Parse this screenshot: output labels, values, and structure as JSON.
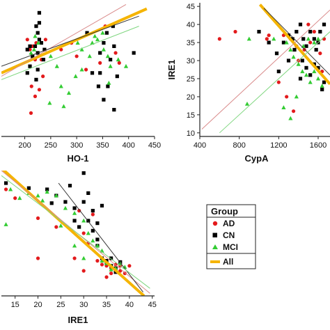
{
  "chart_data": [
    {
      "type": "scatter",
      "xlabel": "HO-1",
      "ylabel": "",
      "xlim": [
        155,
        450
      ],
      "ylim": [
        7,
        47
      ],
      "xticks": [
        "200",
        "250",
        "300",
        "350",
        "400",
        "450"
      ],
      "yticks": [],
      "series": [
        {
          "group": "AD",
          "color": "#e31a1c",
          "marker": "circle",
          "points": [
            [
              213,
              22
            ],
            [
              220,
              19
            ],
            [
              228,
              21
            ],
            [
              215,
              34
            ],
            [
              222,
              35
            ],
            [
              210,
              33
            ],
            [
              232,
              30
            ],
            [
              240,
              36
            ],
            [
              290,
              35
            ],
            [
              300,
              31
            ],
            [
              318,
              27
            ],
            [
              345,
              29
            ],
            [
              355,
              40
            ],
            [
              375,
              32
            ],
            [
              382,
              29
            ],
            [
              220,
              30
            ],
            [
              205,
              36
            ],
            [
              235,
              25
            ],
            [
              212,
              14
            ],
            [
              270,
              33
            ]
          ]
        },
        {
          "group": "CN",
          "color": "#000000",
          "marker": "square",
          "points": [
            [
              220,
              34
            ],
            [
              225,
              32
            ],
            [
              210,
              34
            ],
            [
              228,
              36
            ],
            [
              215,
              31
            ],
            [
              232,
              35
            ],
            [
              205,
              33
            ],
            [
              225,
              38
            ],
            [
              222,
              40
            ],
            [
              228,
              44
            ],
            [
              210,
              28
            ],
            [
              238,
              33
            ],
            [
              225,
              27
            ],
            [
              222,
              24
            ],
            [
              345,
              32
            ],
            [
              352,
              35
            ],
            [
              358,
              38
            ],
            [
              370,
              40
            ],
            [
              365,
              30
            ],
            [
              345,
              26
            ],
            [
              360,
              22
            ],
            [
              372,
              15
            ],
            [
              378,
              25
            ],
            [
              330,
              26
            ],
            [
              320,
              38
            ],
            [
              410,
              32
            ],
            [
              372,
              34
            ],
            [
              205,
              26
            ],
            [
              228,
              41
            ],
            [
              236,
              30
            ],
            [
              352,
              18
            ],
            [
              342,
              22
            ]
          ]
        },
        {
          "group": "MCI",
          "color": "#33cc33",
          "marker": "triangle",
          "points": [
            [
              218,
              33
            ],
            [
              226,
              35
            ],
            [
              220,
              37
            ],
            [
              212,
              32
            ],
            [
              302,
              35
            ],
            [
              310,
              33
            ],
            [
              325,
              31
            ],
            [
              310,
              27
            ],
            [
              298,
              25
            ],
            [
              270,
              22
            ],
            [
              262,
              28
            ],
            [
              250,
              31
            ],
            [
              285,
              20
            ],
            [
              340,
              36
            ],
            [
              352,
              33
            ],
            [
              360,
              31
            ],
            [
              365,
              28
            ],
            [
              335,
              37
            ],
            [
              350,
              38
            ],
            [
              330,
              35
            ],
            [
              380,
              30
            ],
            [
              395,
              28
            ],
            [
              362,
              23
            ],
            [
              248,
              17
            ],
            [
              275,
              16
            ]
          ]
        }
      ],
      "fits": [
        {
          "group": "All",
          "color": "#f5b400",
          "from": [
            155,
            26.0
          ],
          "to": [
            435,
            45.2
          ]
        },
        {
          "group": "AD",
          "color": "#d98a8a",
          "from": [
            155,
            25.0
          ],
          "to": [
            395,
            46.5
          ]
        },
        {
          "group": "CN",
          "color": "#333333",
          "from": [
            155,
            28.0
          ],
          "to": [
            420,
            43.0
          ]
        },
        {
          "group": "MCI",
          "color": "#7fd67f",
          "from": [
            155,
            24.0
          ],
          "to": [
            420,
            40.0
          ]
        }
      ]
    },
    {
      "type": "scatter",
      "xlabel": "CypA",
      "ylabel": "IRE1",
      "xlim": [
        400,
        1720
      ],
      "ylim": [
        9,
        46
      ],
      "xticks": [
        "400",
        "800",
        "1200",
        "1600"
      ],
      "yticks": [
        "10",
        "15",
        "20",
        "25",
        "30",
        "35",
        "40",
        "45"
      ],
      "series": [
        {
          "group": "AD",
          "color": "#e31a1c",
          "marker": "circle",
          "points": [
            [
              600,
              36
            ],
            [
              760,
              38
            ],
            [
              1080,
              36
            ],
            [
              1250,
              37
            ],
            [
              1320,
              36
            ],
            [
              1380,
              34
            ],
            [
              1400,
              30
            ],
            [
              1460,
              33
            ],
            [
              1520,
              35
            ],
            [
              1560,
              38
            ],
            [
              1620,
              32
            ],
            [
              1640,
              27
            ],
            [
              1280,
              20
            ],
            [
              1200,
              24
            ],
            [
              1350,
              16
            ],
            [
              1660,
              36
            ],
            [
              1500,
              40
            ],
            [
              1100,
              37
            ]
          ]
        },
        {
          "group": "CN",
          "color": "#000000",
          "marker": "square",
          "points": [
            [
              1000,
              38
            ],
            [
              1100,
              35
            ],
            [
              1180,
              32
            ],
            [
              1250,
              35
            ],
            [
              1300,
              37
            ],
            [
              1340,
              36
            ],
            [
              1380,
              38
            ],
            [
              1420,
              40
            ],
            [
              1450,
              36
            ],
            [
              1480,
              34
            ],
            [
              1520,
              38
            ],
            [
              1560,
              36
            ],
            [
              1600,
              35
            ],
            [
              1440,
              30
            ],
            [
              1480,
              28
            ],
            [
              1520,
              26
            ],
            [
              1560,
              29
            ],
            [
              1600,
              28
            ],
            [
              1640,
              22
            ],
            [
              1660,
              24
            ],
            [
              1580,
              33
            ],
            [
              1360,
              33
            ],
            [
              1300,
              30
            ],
            [
              1420,
              25
            ],
            [
              1200,
              27
            ],
            [
              1620,
              38
            ],
            [
              1660,
              40
            ]
          ]
        },
        {
          "group": "MCI",
          "color": "#33cc33",
          "marker": "triangle",
          "points": [
            [
              900,
              36
            ],
            [
              1150,
              36
            ],
            [
              1280,
              35
            ],
            [
              1320,
              33
            ],
            [
              1350,
              31
            ],
            [
              1400,
              29
            ],
            [
              1440,
              27
            ],
            [
              1480,
              26
            ],
            [
              1520,
              24
            ],
            [
              1560,
              27
            ],
            [
              1600,
              25
            ],
            [
              1640,
              23
            ],
            [
              1250,
              17
            ],
            [
              1320,
              14
            ],
            [
              1380,
              20
            ],
            [
              1450,
              34
            ],
            [
              1500,
              36
            ],
            [
              1560,
              35
            ],
            [
              1600,
              36
            ],
            [
              880,
              18
            ]
          ]
        }
      ],
      "fits": [
        {
          "group": "All",
          "color": "#f5b400",
          "from": [
            1010,
            45.5
          ],
          "to": [
            1720,
            23.5
          ]
        },
        {
          "group": "AD",
          "color": "#d98a8a",
          "from": [
            420,
            11.0
          ],
          "to": [
            1720,
            44.0
          ]
        },
        {
          "group": "CN",
          "color": "#333333",
          "from": [
            1050,
            44.5
          ],
          "to": [
            1720,
            26.0
          ]
        },
        {
          "group": "MCI",
          "color": "#7fd67f",
          "from": [
            600,
            10.0
          ],
          "to": [
            1720,
            38.0
          ]
        }
      ]
    },
    {
      "type": "scatter",
      "xlabel": "IRE1",
      "ylabel": "",
      "xlim": [
        12,
        45.5
      ],
      "ylim": [
        0,
        100
      ],
      "xticks": [
        "15",
        "20",
        "25",
        "30",
        "35",
        "40",
        "45"
      ],
      "yticks": [],
      "series": [
        {
          "group": "AD",
          "color": "#e31a1c",
          "marker": "circle",
          "points": [
            [
              13,
              85
            ],
            [
              15,
              78
            ],
            [
              20,
              62
            ],
            [
              24,
              55
            ],
            [
              28,
              30
            ],
            [
              30,
              50
            ],
            [
              31,
              42
            ],
            [
              32,
              65
            ],
            [
              33,
              28
            ],
            [
              34,
              25
            ],
            [
              35,
              24
            ],
            [
              36,
              22
            ],
            [
              37,
              25
            ],
            [
              38,
              20
            ],
            [
              39,
              18
            ],
            [
              40,
              24
            ],
            [
              35,
              15
            ],
            [
              36,
              18
            ],
            [
              20,
              30
            ],
            [
              30,
              20
            ],
            [
              29,
              68
            ],
            [
              38,
              24
            ]
          ]
        },
        {
          "group": "CN",
          "color": "#000000",
          "marker": "square",
          "points": [
            [
              13,
              90
            ],
            [
              18,
              86
            ],
            [
              22,
              85
            ],
            [
              24,
              80
            ],
            [
              26,
              75
            ],
            [
              27,
              88
            ],
            [
              28,
              70
            ],
            [
              30,
              98
            ],
            [
              31,
              82
            ],
            [
              32,
              68
            ],
            [
              33,
              58
            ],
            [
              33,
              40
            ],
            [
              34,
              72
            ],
            [
              34,
              30
            ],
            [
              35,
              26
            ],
            [
              36,
              24
            ],
            [
              37,
              22
            ],
            [
              38,
              27
            ],
            [
              36,
              30
            ],
            [
              31,
              60
            ],
            [
              30,
              75
            ],
            [
              29,
              55
            ],
            [
              33,
              45
            ],
            [
              35,
              28
            ],
            [
              37,
              19
            ],
            [
              32,
              52
            ],
            [
              28,
              60
            ],
            [
              23,
              74
            ]
          ]
        },
        {
          "group": "MCI",
          "color": "#33cc33",
          "marker": "triangle",
          "points": [
            [
              14,
              85
            ],
            [
              16,
              78
            ],
            [
              18,
              82
            ],
            [
              20,
              80
            ],
            [
              21,
              76
            ],
            [
              22,
              83
            ],
            [
              24,
              80
            ],
            [
              26,
              70
            ],
            [
              28,
              66
            ],
            [
              30,
              60
            ],
            [
              31,
              50
            ],
            [
              32,
              44
            ],
            [
              33,
              40
            ],
            [
              34,
              28
            ],
            [
              35,
              26
            ],
            [
              36,
              24
            ],
            [
              37,
              22
            ],
            [
              38,
              26
            ],
            [
              39,
              23
            ],
            [
              30,
              30
            ],
            [
              28,
              40
            ],
            [
              25,
              56
            ],
            [
              34,
              36
            ],
            [
              13,
              57
            ],
            [
              36,
              21
            ]
          ]
        }
      ],
      "fits": [
        {
          "group": "All",
          "color": "#f5b400",
          "from": [
            12,
            102.0
          ],
          "to": [
            43.2,
            0.0
          ]
        },
        {
          "group": "AD",
          "color": "#d98a8a",
          "from": [
            12,
            100.0
          ],
          "to": [
            44.5,
            2.0
          ]
        },
        {
          "group": "CN",
          "color": "#333333",
          "from": [
            24.5,
            90.0
          ],
          "to": [
            43.0,
            3.0
          ]
        },
        {
          "group": "MCI",
          "color": "#7fd67f",
          "from": [
            12,
            96.0
          ],
          "to": [
            44.5,
            6.0
          ]
        }
      ]
    }
  ],
  "legend": {
    "title": "Group",
    "items": [
      {
        "label": "AD",
        "marker": "circle",
        "color": "#e31a1c"
      },
      {
        "label": "CN",
        "marker": "square",
        "color": "#000000"
      },
      {
        "label": "MCI",
        "marker": "triangle",
        "color": "#33cc33"
      },
      {
        "label": "All",
        "marker": "line",
        "color": "#f5b400"
      }
    ]
  }
}
